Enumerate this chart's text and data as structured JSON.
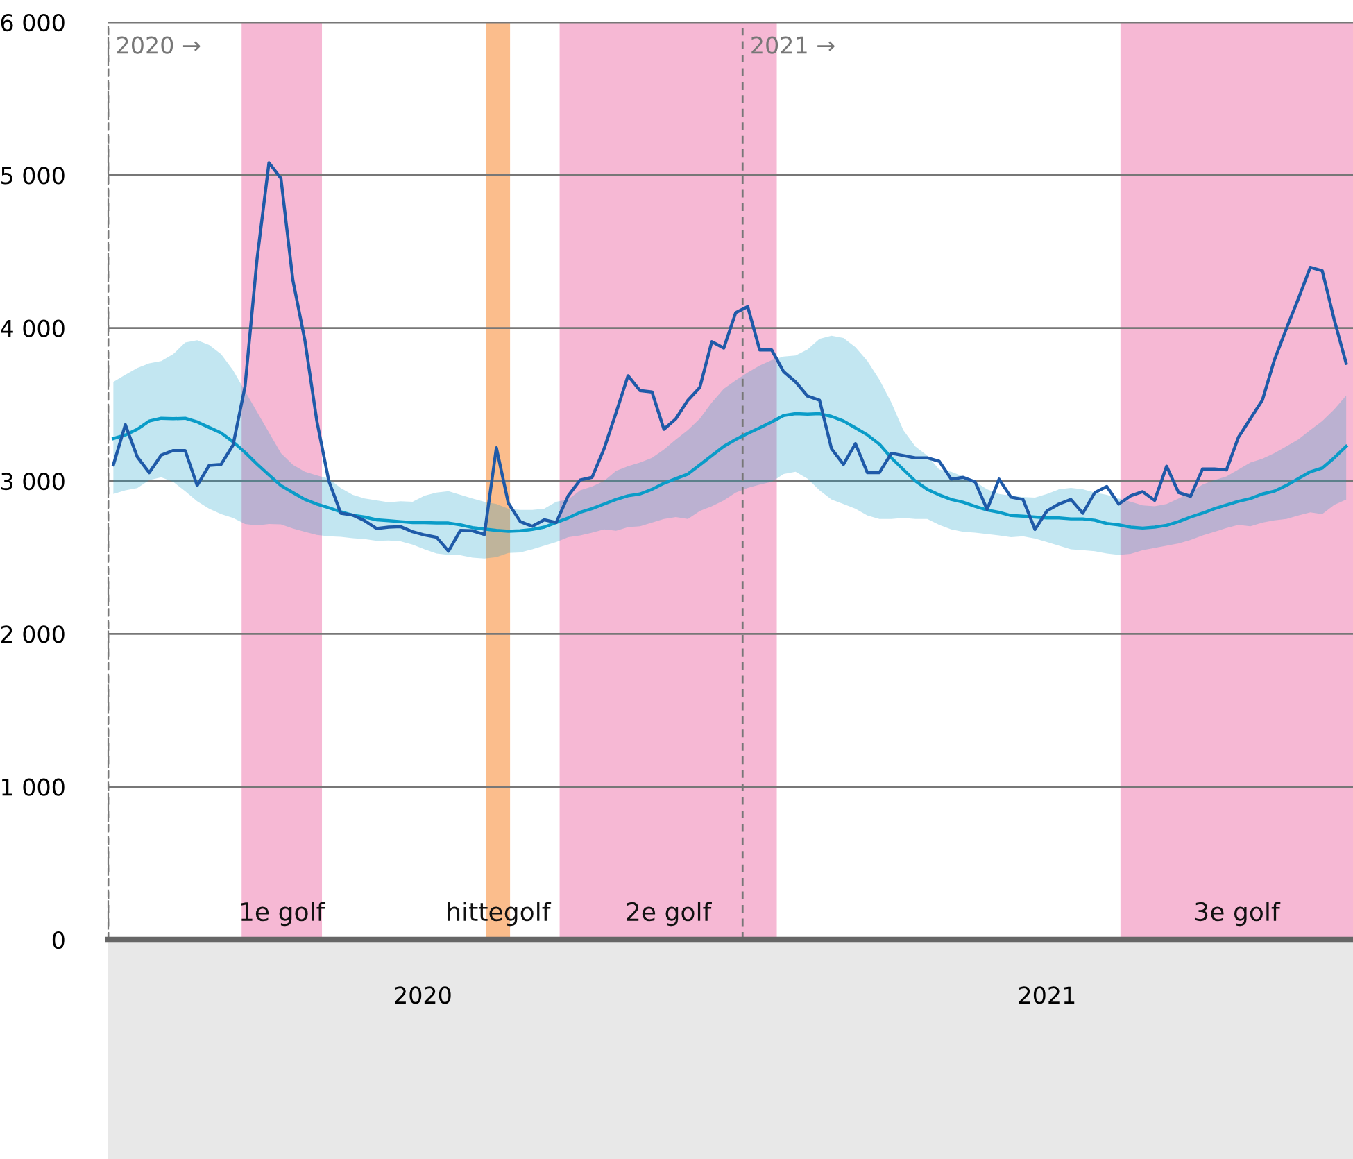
{
  "chart_data": {
    "type": "line",
    "x": [
      "2020-01-02",
      "2020-01-09",
      "2020-01-16",
      "2020-01-23",
      "2020-01-30",
      "2020-02-06",
      "2020-02-13",
      "2020-02-20",
      "2020-02-27",
      "2020-03-05",
      "2020-03-12",
      "2020-03-19",
      "2020-03-26",
      "2020-04-02",
      "2020-04-09",
      "2020-04-16",
      "2020-04-23",
      "2020-04-30",
      "2020-05-07",
      "2020-05-14",
      "2020-05-21",
      "2020-05-28",
      "2020-06-04",
      "2020-06-11",
      "2020-06-18",
      "2020-06-25",
      "2020-07-02",
      "2020-07-09",
      "2020-07-16",
      "2020-07-23",
      "2020-07-30",
      "2020-08-06",
      "2020-08-13",
      "2020-08-20",
      "2020-08-27",
      "2020-09-03",
      "2020-09-10",
      "2020-09-17",
      "2020-09-24",
      "2020-10-01",
      "2020-10-08",
      "2020-10-15",
      "2020-10-22",
      "2020-10-29",
      "2020-11-05",
      "2020-11-12",
      "2020-11-19",
      "2020-11-26",
      "2020-12-03",
      "2020-12-10",
      "2020-12-17",
      "2020-12-24",
      "2020-12-31",
      "2021-01-07",
      "2021-01-14",
      "2021-01-21",
      "2021-01-28",
      "2021-02-04",
      "2021-02-11",
      "2021-02-18",
      "2021-02-25",
      "2021-03-04",
      "2021-03-11",
      "2021-03-18",
      "2021-03-25",
      "2021-04-01",
      "2021-04-08",
      "2021-04-15",
      "2021-04-22",
      "2021-04-29",
      "2021-05-06",
      "2021-05-13",
      "2021-05-20",
      "2021-05-27",
      "2021-06-03",
      "2021-06-10",
      "2021-06-17",
      "2021-06-24",
      "2021-07-01",
      "2021-07-08",
      "2021-07-15",
      "2021-07-22",
      "2021-07-29",
      "2021-08-05",
      "2021-08-12",
      "2021-08-19",
      "2021-08-26",
      "2021-09-02",
      "2021-09-09",
      "2021-09-16",
      "2021-09-23",
      "2021-09-30",
      "2021-10-07",
      "2021-10-14",
      "2021-10-21",
      "2021-10-28",
      "2021-11-04",
      "2021-11-11",
      "2021-11-18",
      "2021-11-25",
      "2021-12-02",
      "2021-12-09",
      "2021-12-16",
      "2021-12-23"
    ],
    "series": [
      {
        "color": "#0a9cc8",
        "values": [
          3277,
          3301,
          3338,
          3392,
          3410,
          3407,
          3410,
          3386,
          3350,
          3314,
          3256,
          3187,
          3111,
          3039,
          2970,
          2924,
          2879,
          2849,
          2825,
          2798,
          2776,
          2764,
          2746,
          2740,
          2734,
          2728,
          2728,
          2725,
          2725,
          2713,
          2695,
          2686,
          2677,
          2671,
          2674,
          2683,
          2698,
          2728,
          2758,
          2795,
          2819,
          2849,
          2879,
          2903,
          2915,
          2945,
          2985,
          3015,
          3045,
          3105,
          3166,
          3226,
          3271,
          3311,
          3347,
          3386,
          3428,
          3440,
          3437,
          3440,
          3422,
          3392,
          3347,
          3301,
          3241,
          3151,
          3075,
          3000,
          2945,
          2909,
          2879,
          2861,
          2834,
          2810,
          2795,
          2774,
          2770,
          2764,
          2758,
          2758,
          2752,
          2752,
          2743,
          2722,
          2713,
          2698,
          2692,
          2698,
          2710,
          2734,
          2764,
          2789,
          2819,
          2843,
          2867,
          2885,
          2915,
          2933,
          2970,
          3015,
          3060,
          3084,
          3151,
          3226
        ],
        "lower": [
          2915,
          2939,
          2954,
          3006,
          3024,
          2994,
          2933,
          2867,
          2819,
          2783,
          2758,
          2719,
          2710,
          2719,
          2716,
          2689,
          2668,
          2647,
          2638,
          2635,
          2626,
          2620,
          2608,
          2611,
          2605,
          2584,
          2553,
          2526,
          2517,
          2514,
          2499,
          2493,
          2502,
          2529,
          2532,
          2553,
          2577,
          2601,
          2632,
          2644,
          2662,
          2683,
          2674,
          2698,
          2704,
          2728,
          2752,
          2764,
          2752,
          2804,
          2834,
          2873,
          2924,
          2955,
          2976,
          2994,
          3045,
          3060,
          3015,
          2939,
          2879,
          2849,
          2819,
          2774,
          2752,
          2752,
          2758,
          2752,
          2752,
          2713,
          2683,
          2668,
          2662,
          2653,
          2644,
          2632,
          2638,
          2623,
          2601,
          2577,
          2553,
          2547,
          2541,
          2526,
          2517,
          2523,
          2547,
          2562,
          2577,
          2592,
          2614,
          2644,
          2668,
          2692,
          2713,
          2704,
          2728,
          2743,
          2752,
          2774,
          2795,
          2783,
          2843,
          2879
        ],
        "upper": [
          3648,
          3694,
          3739,
          3769,
          3784,
          3829,
          3905,
          3920,
          3890,
          3829,
          3724,
          3588,
          3452,
          3316,
          3181,
          3105,
          3060,
          3036,
          3015,
          2954,
          2909,
          2885,
          2873,
          2861,
          2867,
          2864,
          2903,
          2924,
          2933,
          2909,
          2885,
          2864,
          2849,
          2819,
          2810,
          2810,
          2819,
          2864,
          2879,
          2939,
          2964,
          3000,
          3066,
          3096,
          3120,
          3151,
          3205,
          3271,
          3332,
          3407,
          3513,
          3603,
          3658,
          3709,
          3754,
          3790,
          3814,
          3820,
          3860,
          3929,
          3950,
          3935,
          3875,
          3784,
          3663,
          3513,
          3332,
          3226,
          3166,
          3075,
          3060,
          3030,
          2994,
          2945,
          2915,
          2903,
          2894,
          2891,
          2915,
          2945,
          2955,
          2945,
          2924,
          2909,
          2885,
          2864,
          2840,
          2834,
          2849,
          2885,
          2924,
          2976,
          3006,
          3030,
          3075,
          3120,
          3145,
          3181,
          3226,
          3271,
          3332,
          3392,
          3467,
          3558
        ]
      },
      {
        "color": "#1f5aa8",
        "values": [
          3105,
          3368,
          3157,
          3054,
          3169,
          3199,
          3199,
          2970,
          3102,
          3108,
          3235,
          3618,
          4448,
          5081,
          4979,
          4312,
          3920,
          3392,
          3000,
          2789,
          2777,
          2740,
          2689,
          2698,
          2701,
          2668,
          2647,
          2632,
          2541,
          2677,
          2674,
          2650,
          3217,
          2855,
          2734,
          2704,
          2746,
          2728,
          2903,
          3006,
          3024,
          3211,
          3446,
          3688,
          3591,
          3582,
          3338,
          3407,
          3528,
          3612,
          3911,
          3869,
          4101,
          4140,
          3857,
          3857,
          3715,
          3648,
          3555,
          3528,
          3211,
          3108,
          3244,
          3054,
          3054,
          3181,
          3166,
          3151,
          3151,
          3129,
          3012,
          3024,
          2994,
          2813,
          3012,
          2894,
          2879,
          2683,
          2804,
          2849,
          2879,
          2789,
          2924,
          2964,
          2849,
          2903,
          2930,
          2873,
          3096,
          2924,
          2900,
          3078,
          3078,
          3072,
          3286,
          3407,
          3528,
          3790,
          3995,
          4191,
          4397,
          4375,
          4055,
          3769
        ]
      }
    ],
    "xlim": [
      "2019-12-30",
      "2021-12-27"
    ],
    "xticks": [
      {
        "value": "2020-07-01",
        "label": "2020"
      },
      {
        "value": "2021-07-01",
        "label": "2021"
      }
    ],
    "ylim": [
      0,
      6000
    ],
    "yticks": [
      0,
      {
        "value": 1000,
        "label": "1 000"
      },
      {
        "value": 2000,
        "label": "2 000"
      },
      {
        "value": 3000,
        "label": "3 000"
      },
      {
        "value": 4000,
        "label": "4 000"
      },
      {
        "value": 5000,
        "label": "5 000"
      },
      {
        "value": 6000,
        "label": "6 000"
      }
    ],
    "grid": "y",
    "ref_lines": [
      {
        "axis": "x",
        "value": "2019-12-30",
        "label": "2020 →",
        "color": "#777777",
        "line_style": "dashed"
      },
      {
        "axis": "x",
        "value": "2021-01-04",
        "label": "2021 →",
        "color": "#777777",
        "line_style": "dashed"
      }
    ],
    "bands": [
      {
        "axis": "x",
        "from": "2020-03-17",
        "to": "2020-05-03",
        "label": "1e golf",
        "color": "#f6b8d4"
      },
      {
        "axis": "x",
        "from": "2020-08-07",
        "to": "2020-08-21",
        "label": "hittegolf",
        "color": "#fbbd8c"
      },
      {
        "axis": "x",
        "from": "2020-09-19",
        "to": "2021-01-24",
        "label": "2e golf",
        "color": "#f6b8d4"
      },
      {
        "axis": "x",
        "from": "2021-08-13",
        "to": "2021-12-27",
        "label": "3e golf",
        "color": "#f6b8d4"
      }
    ]
  }
}
